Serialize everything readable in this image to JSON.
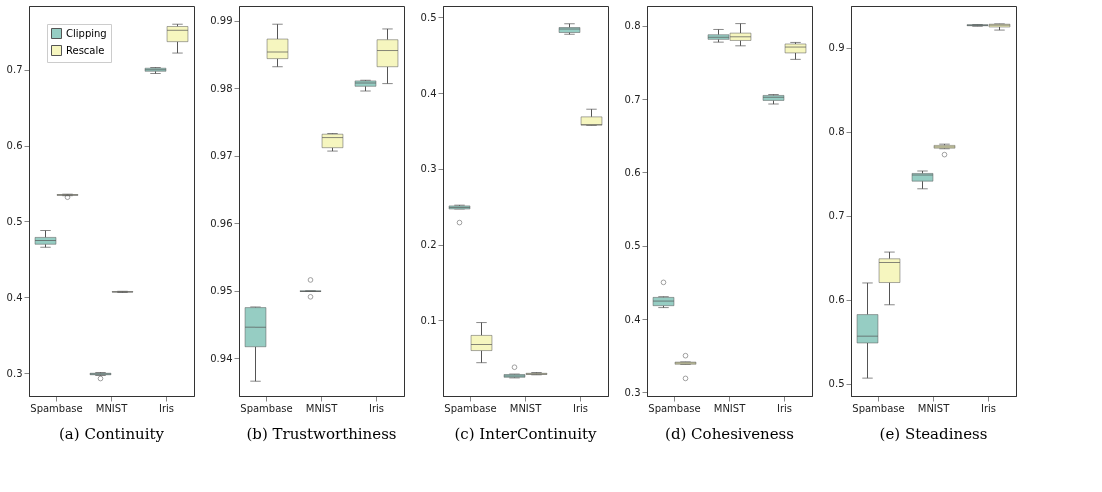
{
  "chart_data": [
    {
      "type": "box",
      "title": "(a) Continuity",
      "categories": [
        "Spambase",
        "MNIST",
        "Iris"
      ],
      "ylim": [
        0.27,
        0.784
      ],
      "yticks": [
        0.3,
        0.4,
        0.5,
        0.6,
        0.7
      ],
      "legend": "top left",
      "series": [
        {
          "name": "Clipping",
          "color": "#96cdc3",
          "boxes": [
            {
              "low": 0.466,
              "q1": 0.47,
              "median": 0.475,
              "q3": 0.479,
              "high": 0.488
            },
            {
              "low": 0.297,
              "q1": 0.298,
              "median": 0.299,
              "q3": 0.3,
              "high": 0.301,
              "outliers": [
                0.293
              ]
            },
            {
              "low": 0.695,
              "q1": 0.698,
              "median": 0.7,
              "q3": 0.702,
              "high": 0.703
            }
          ]
        },
        {
          "name": "Rescale",
          "color": "#f6f6bf",
          "boxes": [
            {
              "low": 0.534,
              "q1": 0.5345,
              "median": 0.535,
              "q3": 0.5355,
              "high": 0.536,
              "outliers": [
                0.532
              ]
            },
            {
              "low": 0.4065,
              "q1": 0.407,
              "median": 0.4072,
              "q3": 0.4075,
              "high": 0.408
            },
            {
              "low": 0.722,
              "q1": 0.737,
              "median": 0.752,
              "q3": 0.757,
              "high": 0.76
            }
          ]
        }
      ]
    },
    {
      "type": "box",
      "title": "(b) Trustworthiness",
      "categories": [
        "Spambase",
        "MNIST",
        "Iris"
      ],
      "ylim": [
        0.9344,
        0.9922
      ],
      "yticks": [
        0.94,
        0.95,
        0.96,
        0.97,
        0.98,
        0.99
      ],
      "series": [
        {
          "name": "Clipping",
          "color": "#96cdc3",
          "boxes": [
            {
              "low": 0.9366,
              "q1": 0.9417,
              "median": 0.9446,
              "q3": 0.9475,
              "high": 0.9476
            },
            {
              "low": 0.9499,
              "q1": 0.9499,
              "median": 0.9499,
              "q3": 0.95,
              "high": 0.95,
              "outliers": [
                0.9516,
                0.9491
              ]
            },
            {
              "low": 0.9796,
              "q1": 0.9803,
              "median": 0.9808,
              "q3": 0.9811,
              "high": 0.9812
            }
          ]
        },
        {
          "name": "Rescale",
          "color": "#f6f6bf",
          "boxes": [
            {
              "low": 0.9832,
              "q1": 0.9844,
              "median": 0.9854,
              "q3": 0.9873,
              "high": 0.9895
            },
            {
              "low": 0.9707,
              "q1": 0.9712,
              "median": 0.9727,
              "q3": 0.9732,
              "high": 0.9733
            },
            {
              "low": 0.9807,
              "q1": 0.9832,
              "median": 0.9856,
              "q3": 0.9872,
              "high": 0.9888
            }
          ]
        }
      ]
    },
    {
      "type": "box",
      "title": "(c) InterContinuity",
      "categories": [
        "Spambase",
        "MNIST",
        "Iris"
      ],
      "ylim": [
        0.0,
        0.515
      ],
      "yticks": [
        0.1,
        0.2,
        0.3,
        0.4,
        0.5
      ],
      "series": [
        {
          "name": "Clipping",
          "color": "#96cdc3",
          "boxes": [
            {
              "low": 0.247,
              "q1": 0.247,
              "median": 0.249,
              "q3": 0.251,
              "high": 0.252,
              "outliers": [
                0.229
              ]
            },
            {
              "low": 0.0239,
              "q1": 0.0247,
              "median": 0.0263,
              "q3": 0.0284,
              "high": 0.029,
              "outliers": [
                0.038
              ]
            },
            {
              "low": 0.4776,
              "q1": 0.48,
              "median": 0.4845,
              "q3": 0.4866,
              "high": 0.4915
            }
          ]
        },
        {
          "name": "Rescale",
          "color": "#f6f6bf",
          "boxes": [
            {
              "low": 0.044,
              "q1": 0.06,
              "median": 0.068,
              "q3": 0.08,
              "high": 0.097
            },
            {
              "low": 0.028,
              "q1": 0.0285,
              "median": 0.029,
              "q3": 0.03,
              "high": 0.031
            },
            {
              "low": 0.3572,
              "q1": 0.3576,
              "median": 0.3584,
              "q3": 0.3686,
              "high": 0.3787
            }
          ]
        }
      ]
    },
    {
      "type": "box",
      "title": "(d) Cohesiveness",
      "categories": [
        "Spambase",
        "MNIST",
        "Iris"
      ],
      "ylim": [
        0.295,
        0.827
      ],
      "yticks": [
        0.3,
        0.4,
        0.5,
        0.6,
        0.7,
        0.8
      ],
      "series": [
        {
          "name": "Clipping",
          "color": "#96cdc3",
          "boxes": [
            {
              "low": 0.4156,
              "q1": 0.4182,
              "median": 0.4245,
              "q3": 0.4295,
              "high": 0.4305,
              "outliers": [
                0.45
              ]
            },
            {
              "low": 0.7777,
              "q1": 0.7815,
              "median": 0.7844,
              "q3": 0.7878,
              "high": 0.795
            },
            {
              "low": 0.6932,
              "q1": 0.6982,
              "median": 0.7024,
              "q3": 0.705,
              "high": 0.7062
            }
          ]
        },
        {
          "name": "Rescale",
          "color": "#f6f6bf",
          "boxes": [
            {
              "low": 0.338,
              "q1": 0.3383,
              "median": 0.34,
              "q3": 0.3412,
              "high": 0.3415,
              "outliers": [
                0.35,
                0.319
              ]
            },
            {
              "low": 0.7727,
              "q1": 0.78,
              "median": 0.785,
              "q3": 0.79,
              "high": 0.803
            },
            {
              "low": 0.7542,
              "q1": 0.763,
              "median": 0.771,
              "q3": 0.7752,
              "high": 0.7773
            }
          ]
        }
      ]
    },
    {
      "type": "box",
      "title": "(e) Steadiness",
      "categories": [
        "Spambase",
        "MNIST",
        "Iris"
      ],
      "ylim": [
        0.4853,
        0.95
      ],
      "yticks": [
        0.5,
        0.6,
        0.7,
        0.8,
        0.9
      ],
      "series": [
        {
          "name": "Clipping",
          "color": "#96cdc3",
          "boxes": [
            {
              "low": 0.5066,
              "q1": 0.5485,
              "median": 0.5566,
              "q3": 0.5823,
              "high": 0.62
            },
            {
              "low": 0.7322,
              "q1": 0.7413,
              "median": 0.7487,
              "q3": 0.7505,
              "high": 0.7534
            },
            {
              "low": 0.926,
              "q1": 0.9265,
              "median": 0.927,
              "q3": 0.9277,
              "high": 0.928
            }
          ]
        },
        {
          "name": "Rescale",
          "color": "#f6f6bf",
          "boxes": [
            {
              "low": 0.594,
              "q1": 0.6205,
              "median": 0.6444,
              "q3": 0.6488,
              "high": 0.6568
            },
            {
              "low": 0.7799,
              "q1": 0.7806,
              "median": 0.7821,
              "q3": 0.7839,
              "high": 0.7854,
              "outliers": [
                0.7729
              ]
            },
            {
              "low": 0.9213,
              "q1": 0.925,
              "median": 0.9272,
              "q3": 0.9283,
              "high": 0.9287
            }
          ]
        }
      ]
    }
  ]
}
